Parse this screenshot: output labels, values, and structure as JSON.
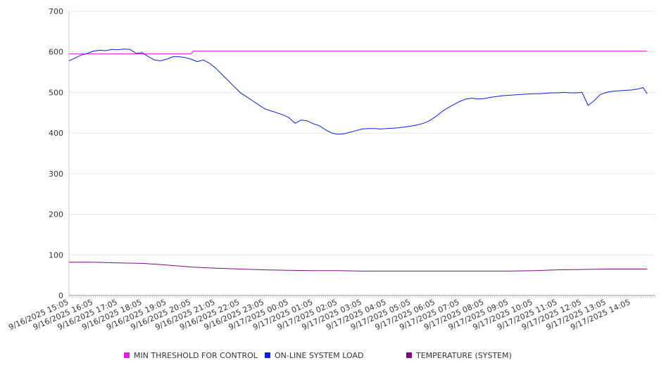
{
  "chart_data": {
    "type": "line",
    "title": "",
    "xlabel": "",
    "ylabel": "",
    "ylim": [
      0,
      700
    ],
    "yticks": [
      0,
      100,
      200,
      300,
      400,
      500,
      600,
      700
    ],
    "grid": "horizontal",
    "legend_position": "bottom",
    "x_tick_labels": [
      "9/16/2025 15:05",
      "9/16/2025 16:05",
      "9/16/2025 17:05",
      "9/16/2025 18:05",
      "9/16/2025 19:05",
      "9/16/2025 20:05",
      "9/16/2025 21:05",
      "9/16/2025 22:05",
      "9/16/2025 23:05",
      "9/17/2025 00:05",
      "9/17/2025 01:05",
      "9/17/2025 02:05",
      "9/17/2025 03:05",
      "9/17/2025 04:05",
      "9/17/2025 05:05",
      "9/17/2025 06:05",
      "9/17/2025 07:05",
      "9/17/2025 08:05",
      "9/17/2025 09:05",
      "9/17/2025 10:05",
      "9/17/2025 11:05",
      "9/17/2025 12:05",
      "9/17/2025 13:05",
      "9/17/2025 14:05"
    ],
    "series": [
      {
        "name": "MIN THRESHOLD FOR CONTROL",
        "color": "#e11ee1",
        "x": [
          "9/16/2025 15:05",
          "9/16/2025 19:05",
          "9/16/2025 20:05",
          "9/16/2025 20:10",
          "9/17/2025 14:05",
          "9/17/2025 14:45"
        ],
        "values": [
          595,
          595,
          595,
          602,
          602,
          602
        ]
      },
      {
        "name": "ON-LINE SYSTEM LOAD",
        "color": "#0a1ee6",
        "x": [
          "9/16/2025 15:05",
          "9/16/2025 15:20",
          "9/16/2025 15:35",
          "9/16/2025 15:50",
          "9/16/2025 16:05",
          "9/16/2025 16:20",
          "9/16/2025 16:35",
          "9/16/2025 16:50",
          "9/16/2025 17:05",
          "9/16/2025 17:20",
          "9/16/2025 17:35",
          "9/16/2025 17:50",
          "9/16/2025 18:05",
          "9/16/2025 18:20",
          "9/16/2025 18:35",
          "9/16/2025 18:50",
          "9/16/2025 19:05",
          "9/16/2025 19:20",
          "9/16/2025 19:35",
          "9/16/2025 19:50",
          "9/16/2025 20:05",
          "9/16/2025 20:20",
          "9/16/2025 20:35",
          "9/16/2025 20:50",
          "9/16/2025 21:05",
          "9/16/2025 21:20",
          "9/16/2025 21:35",
          "9/16/2025 21:50",
          "9/16/2025 22:05",
          "9/16/2025 22:20",
          "9/16/2025 22:35",
          "9/16/2025 22:50",
          "9/16/2025 23:05",
          "9/16/2025 23:20",
          "9/16/2025 23:35",
          "9/16/2025 23:50",
          "9/17/2025 00:05",
          "9/17/2025 00:20",
          "9/17/2025 00:35",
          "9/17/2025 00:50",
          "9/17/2025 01:05",
          "9/17/2025 01:20",
          "9/17/2025 01:35",
          "9/17/2025 01:50",
          "9/17/2025 02:05",
          "9/17/2025 02:20",
          "9/17/2025 02:35",
          "9/17/2025 02:50",
          "9/17/2025 03:05",
          "9/17/2025 03:20",
          "9/17/2025 03:35",
          "9/17/2025 03:50",
          "9/17/2025 04:05",
          "9/17/2025 04:20",
          "9/17/2025 04:35",
          "9/17/2025 04:50",
          "9/17/2025 05:05",
          "9/17/2025 05:20",
          "9/17/2025 05:35",
          "9/17/2025 05:50",
          "9/17/2025 06:05",
          "9/17/2025 06:20",
          "9/17/2025 06:35",
          "9/17/2025 06:50",
          "9/17/2025 07:05",
          "9/17/2025 07:20",
          "9/17/2025 07:35",
          "9/17/2025 07:50",
          "9/17/2025 08:05",
          "9/17/2025 08:20",
          "9/17/2025 08:35",
          "9/17/2025 08:50",
          "9/17/2025 09:05",
          "9/17/2025 09:20",
          "9/17/2025 09:35",
          "9/17/2025 09:50",
          "9/17/2025 10:05",
          "9/17/2025 10:20",
          "9/17/2025 10:35",
          "9/17/2025 10:50",
          "9/17/2025 11:05",
          "9/17/2025 11:20",
          "9/17/2025 11:35",
          "9/17/2025 11:50",
          "9/17/2025 12:05",
          "9/17/2025 12:20",
          "9/17/2025 12:35",
          "9/17/2025 12:50",
          "9/17/2025 13:05",
          "9/17/2025 13:20",
          "9/17/2025 13:35",
          "9/17/2025 13:50",
          "9/17/2025 14:05",
          "9/17/2025 14:20",
          "9/17/2025 14:35",
          "9/17/2025 14:45"
        ],
        "values": [
          578,
          585,
          592,
          596,
          602,
          604,
          603,
          606,
          605,
          607,
          606,
          596,
          598,
          588,
          580,
          578,
          582,
          588,
          588,
          586,
          582,
          576,
          580,
          572,
          560,
          545,
          530,
          515,
          500,
          490,
          480,
          470,
          460,
          455,
          450,
          445,
          438,
          424,
          432,
          430,
          423,
          418,
          408,
          400,
          397,
          398,
          402,
          406,
          410,
          411,
          411,
          410,
          411,
          412,
          413,
          415,
          417,
          420,
          424,
          430,
          440,
          452,
          462,
          470,
          478,
          484,
          486,
          484,
          485,
          488,
          490,
          492,
          493,
          494,
          495,
          496,
          497,
          497,
          498,
          499,
          499,
          500,
          499,
          499,
          500,
          468,
          480,
          495,
          500,
          503,
          504,
          505,
          506,
          508,
          512,
          497
        ]
      },
      {
        "name": "TEMPERATURE (SYSTEM)",
        "color": "#7b0a7b",
        "x": [
          "9/16/2025 15:05",
          "9/16/2025 16:05",
          "9/16/2025 17:05",
          "9/16/2025 18:05",
          "9/16/2025 19:05",
          "9/16/2025 20:05",
          "9/16/2025 21:05",
          "9/16/2025 22:05",
          "9/16/2025 23:05",
          "9/17/2025 00:05",
          "9/17/2025 01:05",
          "9/17/2025 02:05",
          "9/17/2025 03:05",
          "9/17/2025 04:05",
          "9/17/2025 05:05",
          "9/17/2025 06:05",
          "9/17/2025 07:05",
          "9/17/2025 08:05",
          "9/17/2025 09:05",
          "9/17/2025 10:05",
          "9/17/2025 11:05",
          "9/17/2025 12:05",
          "9/17/2025 13:05",
          "9/17/2025 14:05",
          "9/17/2025 14:45"
        ],
        "values": [
          82,
          82,
          80,
          79,
          75,
          70,
          67,
          65,
          63,
          62,
          61,
          61,
          60,
          60,
          60,
          60,
          60,
          60,
          60,
          61,
          63,
          64,
          65,
          65,
          65
        ]
      }
    ]
  }
}
